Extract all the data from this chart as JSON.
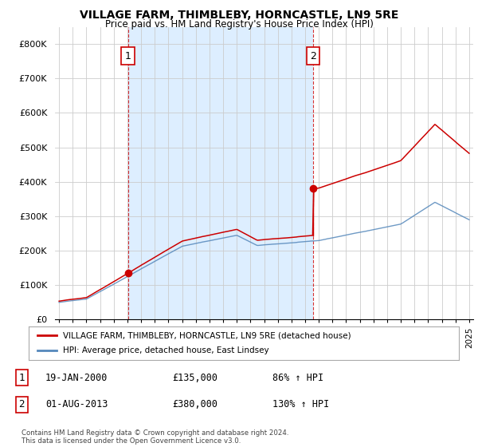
{
  "title": "VILLAGE FARM, THIMBLEBY, HORNCASTLE, LN9 5RE",
  "subtitle": "Price paid vs. HM Land Registry's House Price Index (HPI)",
  "legend_line1": "VILLAGE FARM, THIMBLEBY, HORNCASTLE, LN9 5RE (detached house)",
  "legend_line2": "HPI: Average price, detached house, East Lindsey",
  "annotation1_label": "1",
  "annotation1_date": "19-JAN-2000",
  "annotation1_price": "£135,000",
  "annotation1_hpi": "86% ↑ HPI",
  "annotation2_label": "2",
  "annotation2_date": "01-AUG-2013",
  "annotation2_price": "£380,000",
  "annotation2_hpi": "130% ↑ HPI",
  "footer": "Contains HM Land Registry data © Crown copyright and database right 2024.\nThis data is licensed under the Open Government Licence v3.0.",
  "red_color": "#cc0000",
  "blue_color": "#5588bb",
  "shade_color": "#ddeeff",
  "background_color": "#ffffff",
  "grid_color": "#cccccc",
  "sale1_x": 2000.05,
  "sale1_y": 135000,
  "sale2_x": 2013.58,
  "sale2_y": 380000,
  "ylim": [
    0,
    850000
  ],
  "xlim_start": 1994.7,
  "xlim_end": 2025.3
}
